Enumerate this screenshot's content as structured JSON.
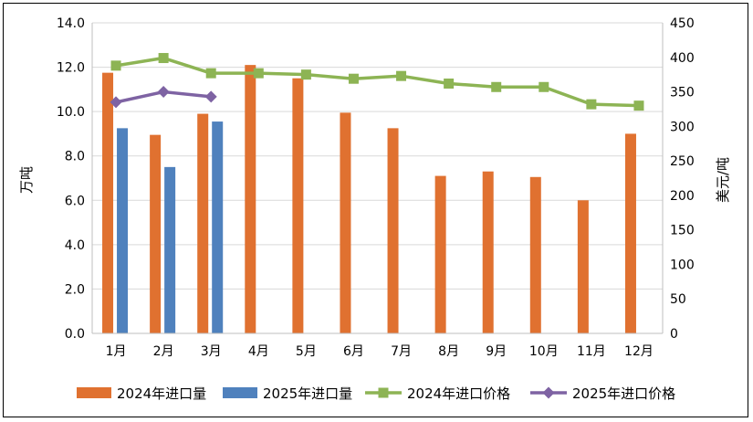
{
  "chart_data": {
    "type": "bar",
    "categories": [
      "1月",
      "2月",
      "3月",
      "4月",
      "5月",
      "6月",
      "7月",
      "8月",
      "9月",
      "10月",
      "11月",
      "12月"
    ],
    "y_left": {
      "label": "万吨",
      "min": 0,
      "max": 14,
      "ticks": [
        "0.0",
        "2.0",
        "4.0",
        "6.0",
        "8.0",
        "10.0",
        "12.0",
        "14.0"
      ]
    },
    "y_right": {
      "label": "美元/吨",
      "min": 0,
      "max": 450,
      "ticks": [
        "0",
        "50",
        "100",
        "150",
        "200",
        "250",
        "300",
        "350",
        "400",
        "450"
      ]
    },
    "grid": true,
    "legend_position": "bottom",
    "bar_series": [
      {
        "name": "2024年进口量",
        "color": "#E07130",
        "values": [
          11.75,
          8.95,
          9.9,
          12.1,
          11.5,
          9.95,
          9.25,
          7.1,
          7.3,
          7.05,
          6.0,
          9.0
        ]
      },
      {
        "name": "2025年进口量",
        "color": "#4F81BD",
        "values": [
          9.25,
          7.5,
          9.55,
          null,
          null,
          null,
          null,
          null,
          null,
          null,
          null,
          null
        ]
      }
    ],
    "line_series": [
      {
        "name": "2024年进口价格",
        "color": "#8DB454",
        "marker": "square",
        "axis": "right",
        "values": [
          388,
          399,
          377,
          377,
          375,
          369,
          373,
          362,
          357,
          357,
          332,
          330
        ]
      },
      {
        "name": "2025年进口价格",
        "color": "#7E63A3",
        "marker": "diamond",
        "axis": "right",
        "values": [
          335,
          350,
          343,
          null,
          null,
          null,
          null,
          null,
          null,
          null,
          null,
          null
        ]
      }
    ]
  }
}
